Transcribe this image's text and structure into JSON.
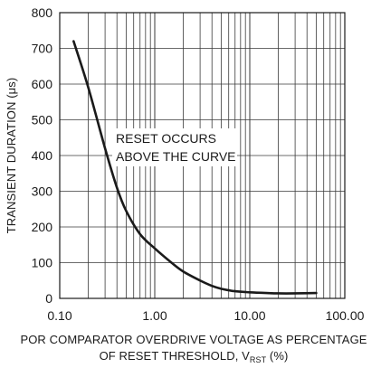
{
  "chart_data": {
    "type": "line",
    "x_scale": "log",
    "xlim": [
      0.1,
      100
    ],
    "ylim": [
      0,
      800
    ],
    "grid": true,
    "x_ticks": [
      {
        "value": 0.1,
        "label": "0.10"
      },
      {
        "value": 1,
        "label": "1.00"
      },
      {
        "value": 10,
        "label": "10.00"
      },
      {
        "value": 100,
        "label": "100.00"
      }
    ],
    "y_ticks": [
      {
        "value": 0,
        "label": "0"
      },
      {
        "value": 100,
        "label": "100"
      },
      {
        "value": 200,
        "label": "200"
      },
      {
        "value": 300,
        "label": "300"
      },
      {
        "value": 400,
        "label": "400"
      },
      {
        "value": 500,
        "label": "500"
      },
      {
        "value": 600,
        "label": "600"
      },
      {
        "value": 700,
        "label": "700"
      },
      {
        "value": 800,
        "label": "800"
      }
    ],
    "ylabel": "TRANSIENT DURATION (μs)",
    "xlabel_line1": "POR COMPARATOR OVERDRIVE VOLTAGE AS PERCENTAGE",
    "xlabel_line2_prefix": "OF RESET THRESHOLD, V",
    "xlabel_line2_subscript": "RST",
    "xlabel_line2_suffix": " (%)",
    "annotation_line1": "RESET OCCURS",
    "annotation_line2": "ABOVE THE CURVE",
    "series": [
      {
        "color": "#1a1a1a",
        "points": [
          [
            0.14,
            720
          ],
          [
            0.2,
            590
          ],
          [
            0.3,
            420
          ],
          [
            0.4,
            310
          ],
          [
            0.5,
            245
          ],
          [
            0.7,
            180
          ],
          [
            1.0,
            140
          ],
          [
            1.5,
            100
          ],
          [
            2.0,
            75
          ],
          [
            3.0,
            50
          ],
          [
            4.0,
            35
          ],
          [
            5.0,
            27
          ],
          [
            7.0,
            20
          ],
          [
            10.0,
            17
          ],
          [
            15.0,
            15
          ],
          [
            20.0,
            14
          ],
          [
            30.0,
            14
          ],
          [
            50.0,
            15
          ]
        ]
      }
    ]
  }
}
